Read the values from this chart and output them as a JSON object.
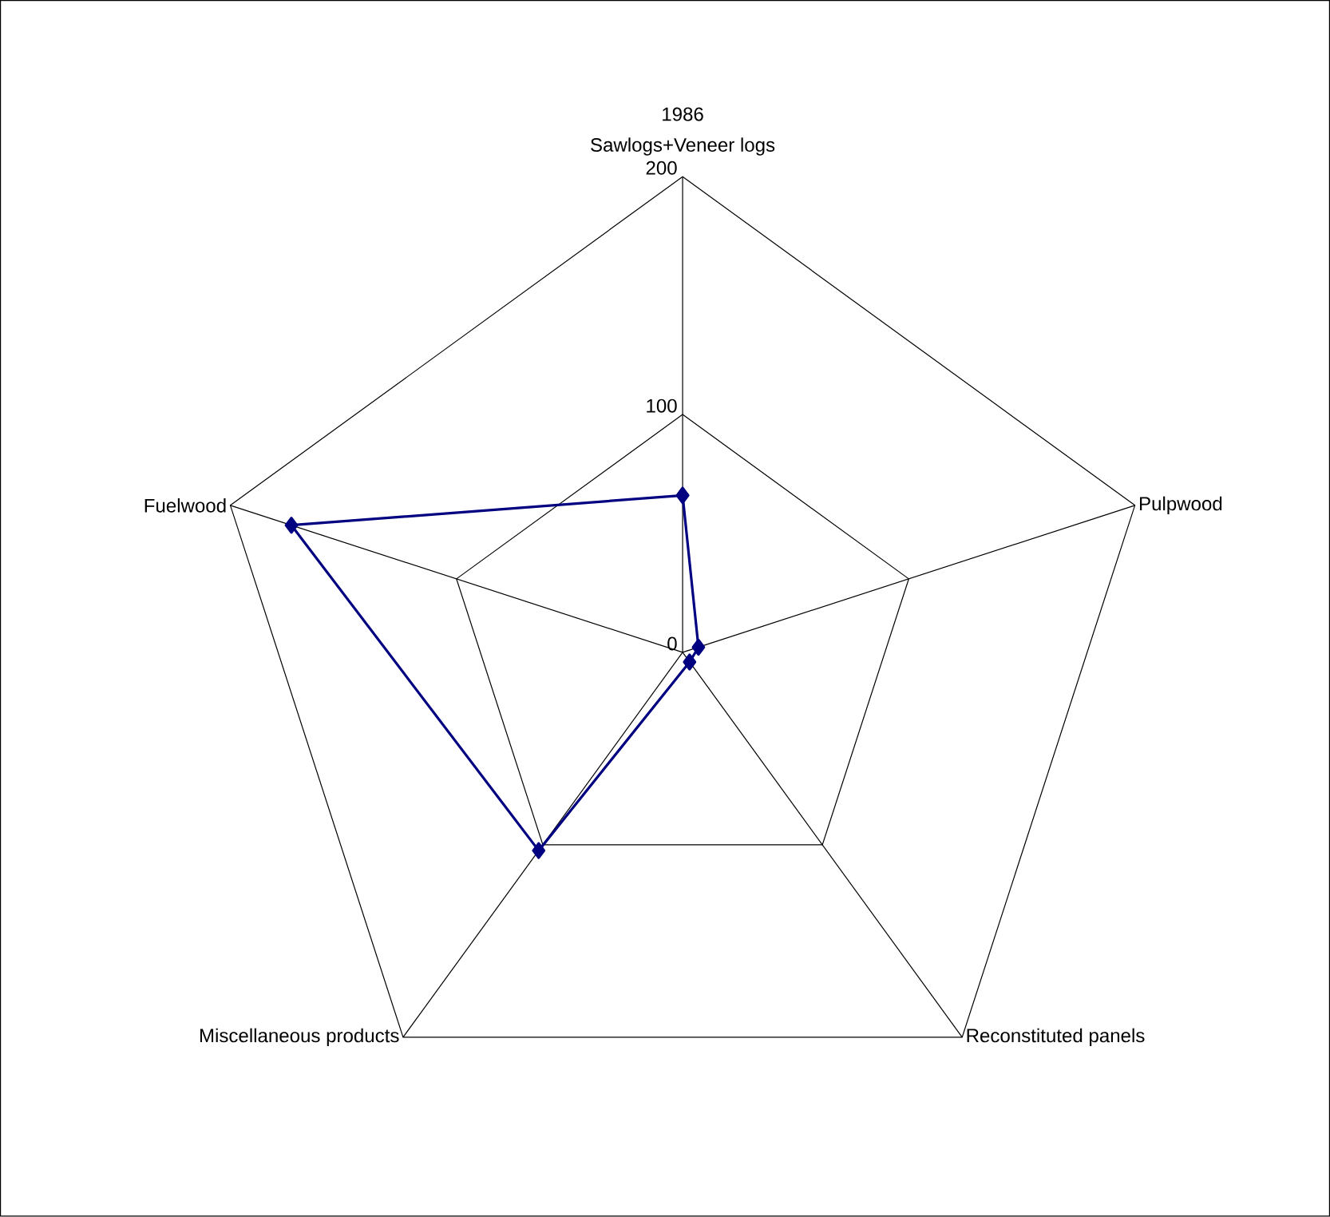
{
  "chart_data": {
    "type": "radar",
    "title": "1986",
    "categories": [
      "Sawlogs+Veneer logs",
      "Pulpwood",
      "Reconstituted panels",
      "Miscellaneous products",
      "Fuelwood"
    ],
    "series": [
      {
        "color": "#000080",
        "values": [
          66,
          7,
          5,
          103,
          173
        ]
      }
    ],
    "ylim": [
      0,
      200
    ],
    "yticks": [
      0,
      100,
      200
    ],
    "grid": true,
    "marker": "diamond",
    "line_style": "solid"
  }
}
